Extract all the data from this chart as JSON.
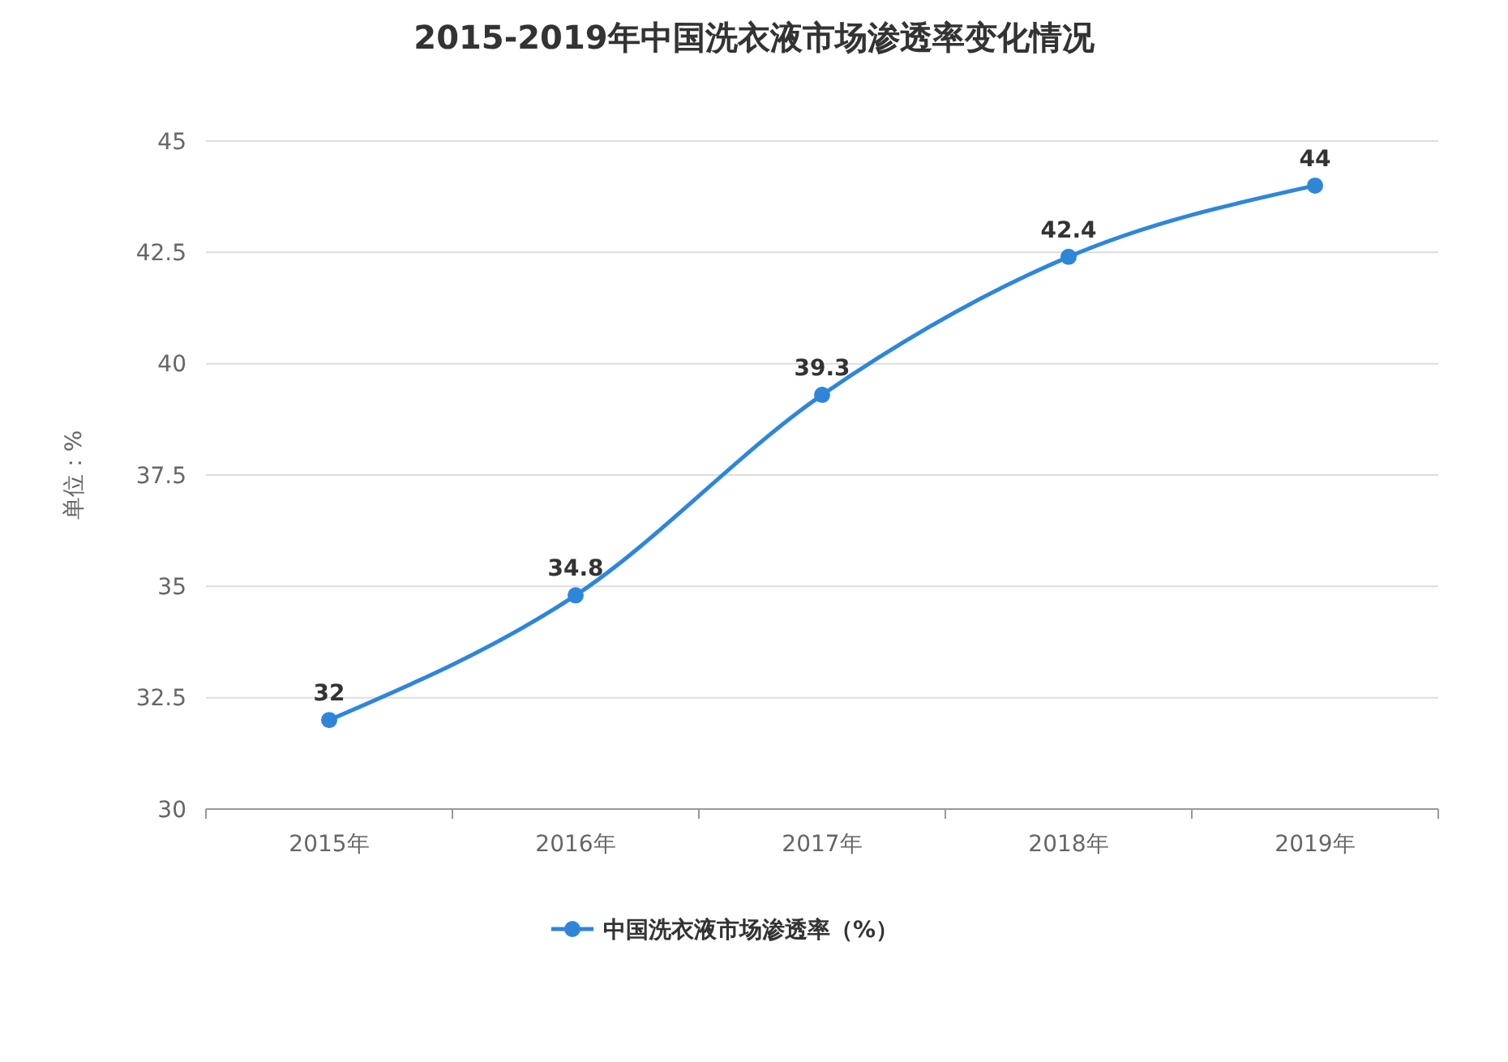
{
  "chart_data": {
    "type": "line",
    "title": "2015-2019年中国洗衣液市场渗透率变化情况",
    "ylabel": "单位：%",
    "categories": [
      "2015年",
      "2016年",
      "2017年",
      "2018年",
      "2019年"
    ],
    "series": [
      {
        "name": "中国洗衣液市场渗透率（%）",
        "color": "#2f86d9",
        "values": [
          32,
          34.8,
          39.3,
          42.4,
          44
        ]
      }
    ],
    "ylim": [
      30,
      45
    ],
    "yticks": [
      30,
      32.5,
      35,
      37.5,
      40,
      42.5,
      45
    ],
    "grid": "y",
    "legend": "bottom",
    "marker": "circle",
    "line_style": "solid",
    "data_labels": true
  }
}
